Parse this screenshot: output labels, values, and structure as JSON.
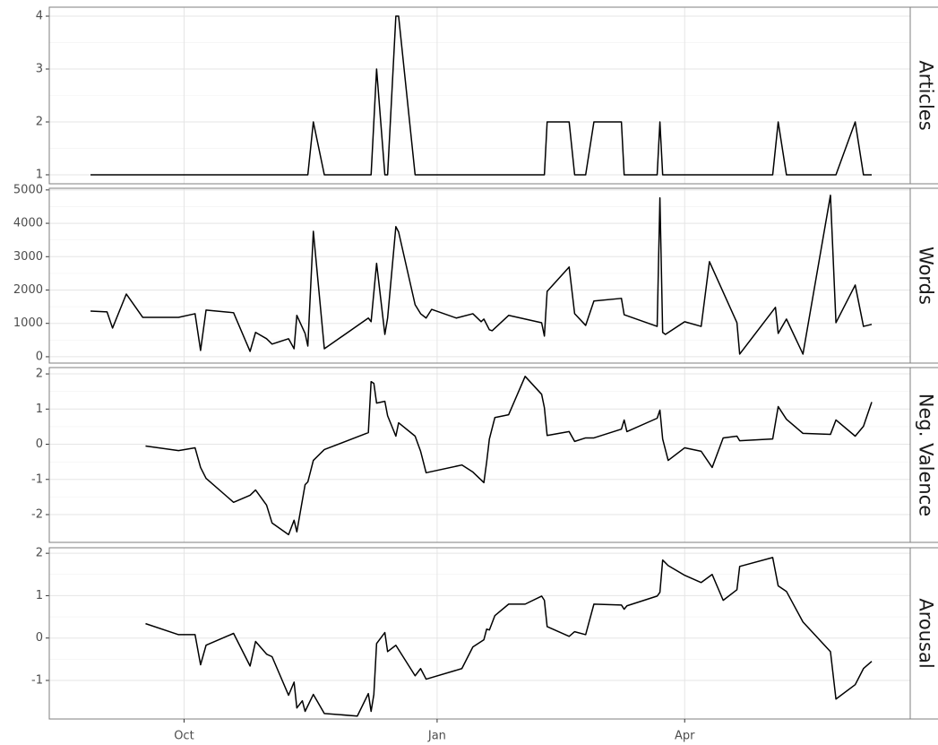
{
  "chart_data": [
    {
      "type": "line",
      "title": "Articles",
      "color": "#000000",
      "grid": true,
      "x": [
        -34,
        45,
        47,
        51,
        68,
        70,
        73,
        74,
        77,
        78,
        84,
        131,
        132,
        140,
        142,
        146,
        149,
        159,
        160,
        172,
        173,
        174,
        214,
        216,
        219,
        237,
        244,
        247,
        250
      ],
      "values": [
        1,
        1,
        2,
        1,
        1,
        3,
        1,
        1,
        4,
        4,
        1,
        1,
        2,
        2,
        1,
        1,
        2,
        2,
        1,
        1,
        2,
        1,
        1,
        2,
        1,
        1,
        2,
        1,
        1
      ],
      "ylim": [
        0.83,
        4.17
      ],
      "yticks": [
        1,
        2,
        3,
        4
      ]
    },
    {
      "type": "line",
      "title": "Words",
      "color": "#000000",
      "grid": true,
      "x": [
        -34,
        -28,
        -26,
        -21,
        -15,
        -2,
        4,
        6,
        8,
        18,
        24,
        26,
        30,
        32,
        38,
        40,
        41,
        44,
        45,
        47,
        51,
        67,
        68,
        70,
        73,
        74,
        77,
        78,
        84,
        86,
        88,
        90,
        99,
        105,
        108,
        109,
        111,
        112,
        118,
        130,
        131,
        132,
        140,
        142,
        146,
        149,
        159,
        160,
        172,
        173,
        174,
        175,
        182,
        188,
        191,
        201,
        202,
        215,
        216,
        219,
        225,
        235,
        237,
        244,
        247,
        250
      ],
      "values": [
        1370,
        1345,
        860,
        1880,
        1180,
        1180,
        1290,
        190,
        1400,
        1320,
        160,
        730,
        540,
        380,
        540,
        240,
        1240,
        700,
        320,
        3760,
        240,
        1160,
        1050,
        2800,
        670,
        1160,
        3900,
        3740,
        1560,
        1290,
        1160,
        1420,
        1160,
        1290,
        1050,
        1130,
        810,
        780,
        1240,
        1020,
        620,
        1960,
        2690,
        1290,
        940,
        1670,
        1750,
        1260,
        910,
        4760,
        730,
        670,
        1050,
        910,
        2850,
        1020,
        80,
        1480,
        700,
        1130,
        80,
        4840,
        1020,
        2150,
        910,
        970
      ],
      "ylim": [
        -190,
        5050
      ],
      "yticks": [
        0,
        1000,
        2000,
        3000,
        4000,
        5000
      ]
    },
    {
      "type": "line",
      "title": "Neg. Valence",
      "color": "#000000",
      "grid": true,
      "x": [
        -14,
        -2,
        4,
        6,
        8,
        18,
        24,
        26,
        30,
        32,
        38,
        40,
        41,
        44,
        45,
        47,
        51,
        67,
        68,
        69,
        70,
        73,
        74,
        77,
        78,
        84,
        86,
        88,
        101,
        105,
        109,
        110,
        111,
        113,
        118,
        124,
        130,
        131,
        132,
        140,
        142,
        146,
        149,
        159,
        160,
        161,
        172,
        173,
        174,
        176,
        182,
        188,
        192,
        196,
        201,
        202,
        214,
        216,
        219,
        225,
        235,
        237,
        244,
        247,
        250
      ],
      "values": [
        -0.05,
        -0.18,
        -0.1,
        -0.66,
        -0.97,
        -1.65,
        -1.45,
        -1.3,
        -1.73,
        -2.24,
        -2.57,
        -2.16,
        -2.49,
        -1.15,
        -1.07,
        -0.46,
        -0.15,
        0.33,
        1.78,
        1.73,
        1.17,
        1.22,
        0.81,
        0.23,
        0.61,
        0.23,
        -0.2,
        -0.81,
        -0.59,
        -0.79,
        -1.09,
        -0.51,
        0.15,
        0.76,
        0.84,
        1.93,
        1.42,
        1.04,
        0.25,
        0.36,
        0.08,
        0.18,
        0.18,
        0.43,
        0.69,
        0.36,
        0.74,
        0.97,
        0.15,
        -0.46,
        -0.1,
        -0.2,
        -0.66,
        0.18,
        0.23,
        0.1,
        0.15,
        1.07,
        0.71,
        0.31,
        0.28,
        0.69,
        0.23,
        0.51,
        1.2
      ],
      "ylim": [
        -2.79,
        2.18
      ],
      "yticks": [
        -2,
        -1,
        0,
        1,
        2
      ]
    },
    {
      "type": "line",
      "title": "Arousal",
      "color": "#000000",
      "grid": true,
      "x": [
        -14,
        -2,
        4,
        6,
        8,
        18,
        24,
        26,
        30,
        32,
        38,
        40,
        41,
        43,
        44,
        47,
        51,
        63,
        67,
        68,
        69,
        70,
        73,
        74,
        77,
        84,
        86,
        88,
        101,
        105,
        109,
        110,
        111,
        113,
        118,
        124,
        130,
        131,
        132,
        140,
        142,
        146,
        149,
        159,
        160,
        161,
        172,
        173,
        174,
        176,
        182,
        188,
        192,
        196,
        201,
        202,
        214,
        216,
        219,
        225,
        235,
        237,
        244,
        247,
        250
      ],
      "values": [
        0.34,
        0.08,
        0.08,
        -0.63,
        -0.17,
        0.11,
        -0.66,
        -0.08,
        -0.38,
        -0.44,
        -1.35,
        -1.04,
        -1.65,
        -1.48,
        -1.73,
        -1.33,
        -1.78,
        -1.84,
        -1.31,
        -1.73,
        -1.33,
        -0.13,
        0.13,
        -0.32,
        -0.17,
        -0.89,
        -0.72,
        -0.97,
        -0.72,
        -0.21,
        -0.04,
        0.21,
        0.19,
        0.53,
        0.8,
        0.8,
        0.99,
        0.89,
        0.27,
        0.04,
        0.15,
        0.08,
        0.8,
        0.78,
        0.68,
        0.76,
        0.99,
        1.08,
        1.84,
        1.71,
        1.48,
        1.31,
        1.5,
        0.89,
        1.14,
        1.69,
        1.9,
        1.23,
        1.1,
        0.38,
        -0.32,
        -1.44,
        -1.1,
        -0.72,
        -0.55
      ],
      "ylim": [
        -1.91,
        2.13
      ],
      "yticks": [
        -1,
        0,
        1,
        2
      ],
      "xlim": [
        -49,
        264
      ],
      "xticks": [
        {
          "value": 0,
          "label": "Oct"
        },
        {
          "value": 92,
          "label": "Jan"
        },
        {
          "value": 182,
          "label": "Apr"
        }
      ]
    }
  ]
}
